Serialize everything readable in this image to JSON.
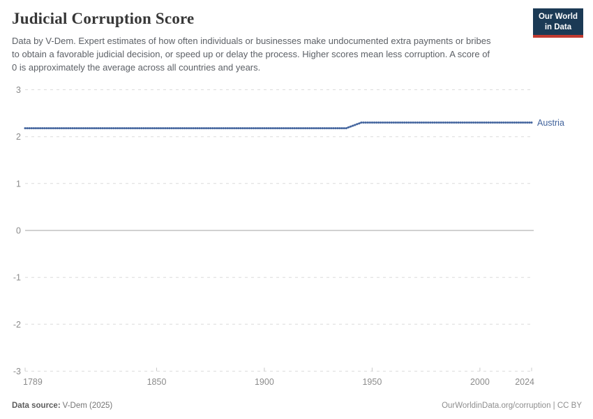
{
  "header": {
    "title": "Judicial Corruption Score",
    "subtitle": "Data by V-Dem. Expert estimates of how often individuals or businesses make undocumented extra payments or bribes to obtain a favorable judicial decision, or speed up or delay the process. Higher scores mean less corruption. A score of 0 is approximately the average across all countries and years.",
    "logo": {
      "line1": "Our World",
      "line2": "in Data",
      "bg_color": "#1b3a55",
      "accent_color": "#c13a30"
    }
  },
  "chart_data": {
    "type": "line",
    "title": "Judicial Corruption Score",
    "xlabel": "",
    "ylabel": "",
    "xlim": [
      1789,
      2024
    ],
    "ylim": [
      -3,
      3
    ],
    "x_ticks": [
      1789,
      1850,
      1900,
      1950,
      2000,
      2024
    ],
    "y_ticks": [
      3,
      2,
      1,
      0,
      -1,
      -2,
      -3
    ],
    "grid": "horizontal dashed gridlines, solid line at 0, dashed baseline at -3 with upward tick marks",
    "legend_position": "inline label at right end of line",
    "series": [
      {
        "name": "Austria",
        "color": "#5878ab",
        "marker_color": "#44659e",
        "label_color": "#41639c",
        "marker": "circle",
        "note": "flat at ~2.18 from 1789 to 1938, rises to ~2.30 by 1945, flat at ~2.30 through 2024",
        "points": [
          [
            1789,
            2.18
          ],
          [
            1938,
            2.18
          ],
          [
            1945,
            2.3
          ],
          [
            2024,
            2.3
          ]
        ]
      }
    ],
    "axis_label_color": "#8b8b8b",
    "gridline_color": "#dcdcdc",
    "zero_line_color": "#a3a3a3"
  },
  "footer": {
    "source_label": "Data source:",
    "source_value": "V-Dem (2025)",
    "credit": "OurWorldinData.org/corruption | CC BY"
  }
}
